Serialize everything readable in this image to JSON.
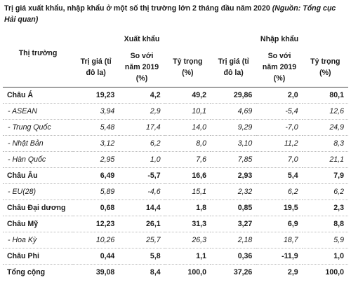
{
  "caption": {
    "text": "Trị giá xuất khẩu, nhập khẩu ở một số thị trường lớn 2 tháng đầu năm 2020 ",
    "source": "(Nguồn: Tổng cục Hải quan)"
  },
  "table": {
    "export_group": "Xuất khẩu",
    "import_group": "Nhập khẩu",
    "market_header": "Thị trường",
    "export_headers": [
      "Trị giá (tỉ đô la)",
      "So với năm 2019 (%)",
      "Tỷ trọng (%)"
    ],
    "import_headers": [
      "Trị giá (tỉ đô la)",
      "So với năm 2019 (%)",
      "Tỷ trọng (%)"
    ],
    "rows": [
      {
        "market": "Châu Á",
        "type": "region",
        "ex_value": "19,23",
        "ex_change": "4,2",
        "ex_share": "49,2",
        "im_value": "29,86",
        "im_change": "2,0",
        "im_share": "80,1"
      },
      {
        "market": "- ASEAN",
        "type": "sub",
        "ex_value": "3,94",
        "ex_change": "2,9",
        "ex_share": "10,1",
        "im_value": "4,69",
        "im_change": "-5,4",
        "im_share": "12,6"
      },
      {
        "market": "- Trung Quốc",
        "type": "sub",
        "ex_value": "5,48",
        "ex_change": "17,4",
        "ex_share": "14,0",
        "im_value": "9,29",
        "im_change": "-7,0",
        "im_share": "24,9"
      },
      {
        "market": "- Nhật Bản",
        "type": "sub",
        "ex_value": "3,12",
        "ex_change": "6,2",
        "ex_share": "8,0",
        "im_value": "3,10",
        "im_change": "11,2",
        "im_share": "8,3"
      },
      {
        "market": "- Hàn Quốc",
        "type": "sub",
        "ex_value": "2,95",
        "ex_change": "1,0",
        "ex_share": "7,6",
        "im_value": "7,85",
        "im_change": "7,0",
        "im_share": "21,1"
      },
      {
        "market": "Châu Âu",
        "type": "region",
        "ex_value": "6,49",
        "ex_change": "-5,7",
        "ex_share": "16,6",
        "im_value": "2,93",
        "im_change": "5,4",
        "im_share": "7,9"
      },
      {
        "market": "- EU(28)",
        "type": "sub",
        "ex_value": "5,89",
        "ex_change": "-4,6",
        "ex_share": "15,1",
        "im_value": "2,32",
        "im_change": "6,2",
        "im_share": "6,2"
      },
      {
        "market": "Châu Đại dương",
        "type": "region",
        "ex_value": "0,68",
        "ex_change": "14,4",
        "ex_share": "1,8",
        "im_value": "0,85",
        "im_change": "19,5",
        "im_share": "2,3"
      },
      {
        "market": "Châu Mỹ",
        "type": "region",
        "ex_value": "12,23",
        "ex_change": "26,1",
        "ex_share": "31,3",
        "im_value": "3,27",
        "im_change": "6,9",
        "im_share": "8,8"
      },
      {
        "market": "- Hoa Kỳ",
        "type": "sub",
        "ex_value": "10,26",
        "ex_change": "25,7",
        "ex_share": "26,3",
        "im_value": "2,18",
        "im_change": "18,7",
        "im_share": "5,9"
      },
      {
        "market": "Châu Phi",
        "type": "region",
        "ex_value": "0,44",
        "ex_change": "5,8",
        "ex_share": "1,1",
        "im_value": "0,36",
        "im_change": "-11,9",
        "im_share": "1,0"
      },
      {
        "market": "Tổng cộng",
        "type": "total",
        "ex_value": "39,08",
        "ex_change": "8,4",
        "ex_share": "100,0",
        "im_value": "37,26",
        "im_change": "2,9",
        "im_share": "100,0"
      }
    ]
  }
}
